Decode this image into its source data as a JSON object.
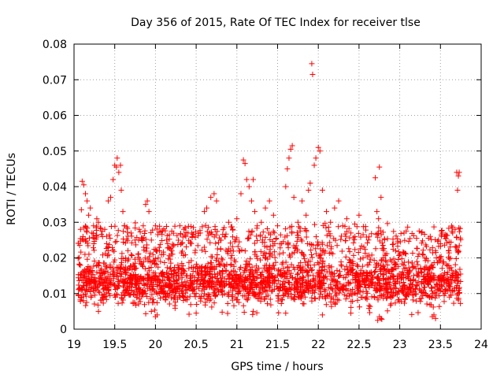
{
  "chart_data": {
    "type": "scatter",
    "title": "Day 356 of 2015, Rate Of TEC Index for receiver tlse",
    "xlabel": "GPS time / hours",
    "ylabel": "ROTI / TECUs",
    "xlim": [
      19,
      24
    ],
    "ylim": [
      0,
      0.08
    ],
    "x_ticks": [
      "19",
      "19.5",
      "20",
      "20.5",
      "21",
      "21.5",
      "22",
      "22.5",
      "23",
      "23.5",
      "24"
    ],
    "y_ticks": [
      "0",
      "0.01",
      "0.02",
      "0.03",
      "0.04",
      "0.05",
      "0.06",
      "0.07",
      "0.08"
    ],
    "grid": true,
    "marker": "plus",
    "color": "#ff0000",
    "series": [
      {
        "name": "ROTI",
        "points": [
          [
            19.07,
            0.0235
          ],
          [
            19.09,
            0.0335
          ],
          [
            19.1,
            0.0415
          ],
          [
            19.12,
            0.0405
          ],
          [
            19.14,
            0.038
          ],
          [
            19.16,
            0.036
          ],
          [
            19.08,
            0.028
          ],
          [
            19.11,
            0.026
          ],
          [
            19.18,
            0.032
          ],
          [
            19.2,
            0.034
          ],
          [
            19.22,
            0.027
          ],
          [
            19.24,
            0.029
          ],
          [
            19.28,
            0.031
          ],
          [
            19.3,
            0.03
          ],
          [
            19.35,
            0.026
          ],
          [
            19.4,
            0.024
          ],
          [
            19.42,
            0.036
          ],
          [
            19.45,
            0.037
          ],
          [
            19.48,
            0.042
          ],
          [
            19.5,
            0.046
          ],
          [
            19.52,
            0.0455
          ],
          [
            19.53,
            0.048
          ],
          [
            19.55,
            0.044
          ],
          [
            19.57,
            0.046
          ],
          [
            19.58,
            0.039
          ],
          [
            19.6,
            0.033
          ],
          [
            19.62,
            0.029
          ],
          [
            19.7,
            0.027
          ],
          [
            19.75,
            0.025
          ],
          [
            19.8,
            0.028
          ],
          [
            19.85,
            0.029
          ],
          [
            19.88,
            0.035
          ],
          [
            19.9,
            0.036
          ],
          [
            19.92,
            0.033
          ],
          [
            19.95,
            0.025
          ],
          [
            20.0,
            0.029
          ],
          [
            20.05,
            0.022
          ],
          [
            20.1,
            0.021
          ],
          [
            20.15,
            0.024
          ],
          [
            20.2,
            0.022
          ],
          [
            20.3,
            0.029
          ],
          [
            20.35,
            0.028
          ],
          [
            20.4,
            0.027
          ],
          [
            20.45,
            0.026
          ],
          [
            20.55,
            0.027
          ],
          [
            20.6,
            0.033
          ],
          [
            20.63,
            0.034
          ],
          [
            20.68,
            0.037
          ],
          [
            20.72,
            0.038
          ],
          [
            20.75,
            0.036
          ],
          [
            20.8,
            0.025
          ],
          [
            20.85,
            0.026
          ],
          [
            20.9,
            0.03
          ],
          [
            20.95,
            0.028
          ],
          [
            21.0,
            0.031
          ],
          [
            21.05,
            0.038
          ],
          [
            21.08,
            0.0475
          ],
          [
            21.1,
            0.0465
          ],
          [
            21.12,
            0.042
          ],
          [
            21.15,
            0.04
          ],
          [
            21.18,
            0.036
          ],
          [
            21.2,
            0.042
          ],
          [
            21.22,
            0.033
          ],
          [
            21.25,
            0.029
          ],
          [
            21.3,
            0.03
          ],
          [
            21.35,
            0.034
          ],
          [
            21.4,
            0.036
          ],
          [
            21.45,
            0.032
          ],
          [
            21.5,
            0.029
          ],
          [
            21.55,
            0.024
          ],
          [
            21.6,
            0.04
          ],
          [
            21.62,
            0.045
          ],
          [
            21.64,
            0.048
          ],
          [
            21.66,
            0.0505
          ],
          [
            21.68,
            0.0515
          ],
          [
            21.7,
            0.037
          ],
          [
            21.75,
            0.03
          ],
          [
            21.8,
            0.036
          ],
          [
            21.85,
            0.032
          ],
          [
            21.88,
            0.039
          ],
          [
            21.9,
            0.041
          ],
          [
            21.92,
            0.0745
          ],
          [
            21.93,
            0.0715
          ],
          [
            21.95,
            0.046
          ],
          [
            21.97,
            0.048
          ],
          [
            22.0,
            0.051
          ],
          [
            22.02,
            0.05
          ],
          [
            22.05,
            0.039
          ],
          [
            22.1,
            0.033
          ],
          [
            22.15,
            0.03
          ],
          [
            22.2,
            0.034
          ],
          [
            22.25,
            0.036
          ],
          [
            22.3,
            0.029
          ],
          [
            22.35,
            0.031
          ],
          [
            22.4,
            0.027
          ],
          [
            22.45,
            0.026
          ],
          [
            22.5,
            0.032
          ],
          [
            22.55,
            0.02
          ],
          [
            22.6,
            0.018
          ],
          [
            22.65,
            0.016
          ],
          [
            22.7,
            0.0425
          ],
          [
            22.72,
            0.033
          ],
          [
            22.74,
            0.031
          ],
          [
            22.75,
            0.0455
          ],
          [
            22.77,
            0.037
          ],
          [
            22.8,
            0.02
          ],
          [
            22.85,
            0.018
          ],
          [
            22.9,
            0.019
          ],
          [
            22.95,
            0.022
          ],
          [
            23.0,
            0.021
          ],
          [
            23.05,
            0.018
          ],
          [
            23.1,
            0.016
          ],
          [
            23.2,
            0.017
          ],
          [
            23.3,
            0.015
          ],
          [
            23.4,
            0.018
          ],
          [
            23.45,
            0.02
          ],
          [
            23.5,
            0.024
          ],
          [
            23.52,
            0.027
          ],
          [
            23.55,
            0.026
          ],
          [
            23.6,
            0.022
          ],
          [
            23.65,
            0.027
          ],
          [
            23.68,
            0.028
          ],
          [
            23.7,
            0.044
          ],
          [
            23.72,
            0.043
          ],
          [
            23.71,
            0.039
          ],
          [
            23.73,
            0.044
          ],
          [
            22.73,
            0.0025
          ],
          [
            22.75,
            0.0035
          ],
          [
            22.77,
            0.003
          ],
          [
            22.78,
            0.0028
          ],
          [
            23.4,
            0.0035
          ],
          [
            23.42,
            0.004
          ],
          [
            23.44,
            0.003
          ],
          [
            20.0,
            0.0035
          ],
          [
            20.02,
            0.004
          ],
          [
            19.95,
            0.005
          ],
          [
            20.5,
            0.0045
          ],
          [
            21.2,
            0.005
          ],
          [
            21.6,
            0.0045
          ],
          [
            22.05,
            0.004
          ],
          [
            22.4,
            0.0045
          ],
          [
            19.3,
            0.005
          ]
        ],
        "dense_band": {
          "x_range": [
            19.05,
            23.75
          ],
          "y_core": [
            0.005,
            0.021
          ],
          "y_typical_center": 0.012,
          "approx_points": 2600,
          "seed": 3560
        }
      }
    ]
  }
}
